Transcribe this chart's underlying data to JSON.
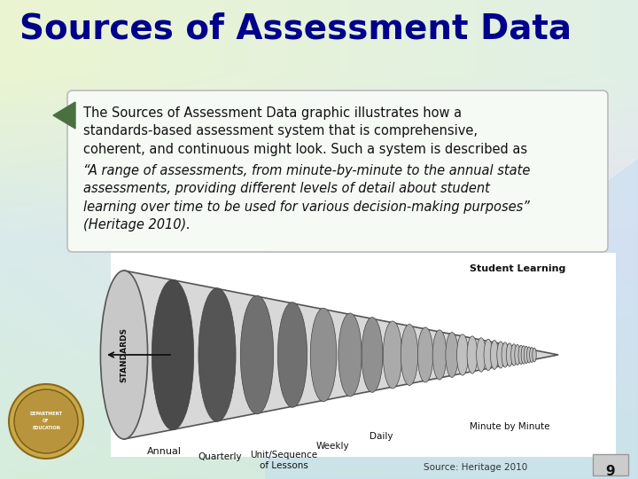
{
  "title": "Sources of Assessment Data",
  "title_color": "#00008B",
  "title_fontsize": 28,
  "body_text_normal": "The Sources of Assessment Data graphic illustrates how a\nstandards-based assessment system that is comprehensive,\ncoherent, and continuous might look. Such a system is described as",
  "body_text_italic": "“A range of assessments, from minute-by-minute to the annual state\nassessments, providing different levels of detail about student\nlearning over time to be used for various decision-making purposes”\n(Heritage 2010).",
  "source_text": "Source: Heritage 2010",
  "page_number": "9",
  "box_bg": "#f5faf5",
  "box_border": "#bbbbbb",
  "title_bg_top": "#d8edca",
  "bg_center": "#c8dff0",
  "bg_bottom": "#d0e8d8",
  "arrow_green": "#4a7a3a",
  "font_size_body": 10.5
}
